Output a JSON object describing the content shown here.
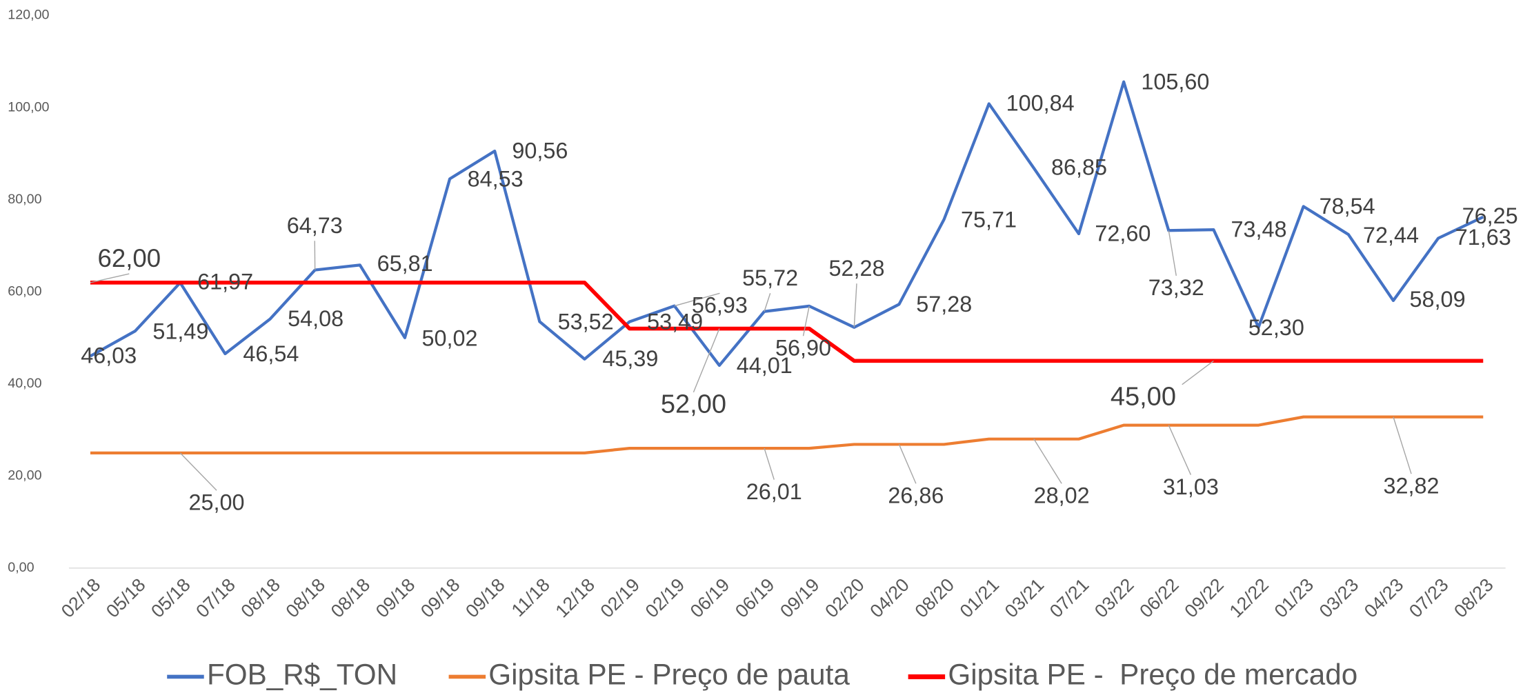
{
  "chart_data": {
    "type": "line",
    "categories": [
      "02/18",
      "05/18",
      "05/18",
      "07/18",
      "08/18",
      "08/18",
      "08/18",
      "09/18",
      "09/18",
      "09/18",
      "11/18",
      "12/18",
      "02/19",
      "02/19",
      "06/19",
      "06/19",
      "09/19",
      "02/20",
      "04/20",
      "08/20",
      "01/21",
      "03/21",
      "07/21",
      "03/22",
      "06/22",
      "09/22",
      "12/22",
      "01/23",
      "03/23",
      "04/23",
      "07/23",
      "08/23"
    ],
    "series": [
      {
        "name": "FOB_R$_TON",
        "color": "#4472c4",
        "values": [
          46.03,
          51.49,
          61.97,
          46.54,
          54.08,
          64.73,
          65.81,
          50.02,
          84.53,
          90.56,
          53.52,
          45.39,
          53.49,
          56.93,
          44.01,
          55.72,
          56.9,
          52.28,
          57.28,
          75.71,
          100.84,
          86.85,
          72.6,
          105.6,
          73.32,
          73.48,
          52.3,
          78.54,
          72.44,
          58.09,
          71.63,
          76.25
        ],
        "value_labels": [
          "46,03",
          "51,49",
          "61,97",
          "46,54",
          "54,08",
          "64,73",
          "65,81",
          "50,02",
          "84,53",
          "90,56",
          "53,52",
          "45,39",
          "53,49",
          "56,93",
          "44,01",
          "55,72",
          "56,90",
          "52,28",
          "57,28",
          "75,71",
          "100,84",
          "86,85",
          "72,60",
          "105,60",
          "73,32",
          "73,48",
          "52,30",
          "78,54",
          "72,44",
          "58,09",
          "71,63",
          "76,25"
        ]
      },
      {
        "name": "Gipsita PE - Preço de pauta",
        "color": "#ed7d31",
        "values": [
          25,
          25,
          25,
          25,
          25,
          25,
          25,
          25,
          25,
          25,
          25,
          25,
          26.01,
          26.01,
          26.01,
          26.01,
          26.01,
          26.86,
          26.86,
          26.86,
          28.02,
          28.02,
          28.02,
          31.03,
          31.03,
          31.03,
          31.03,
          32.82,
          32.82,
          32.82,
          32.82,
          32.82
        ],
        "value_labels": [
          null,
          null,
          "25,00",
          null,
          null,
          null,
          null,
          null,
          null,
          null,
          null,
          null,
          null,
          null,
          null,
          "26,01",
          null,
          null,
          "26,86",
          null,
          null,
          "28,02",
          null,
          null,
          "31,03",
          null,
          null,
          null,
          null,
          "32,82",
          null,
          null
        ]
      },
      {
        "name": "Gipsita PE -  Preço de mercado",
        "color": "#ff0000",
        "values": [
          62,
          62,
          62,
          62,
          62,
          62,
          62,
          62,
          62,
          62,
          62,
          62,
          52,
          52,
          52,
          52,
          52,
          45,
          45,
          45,
          45,
          45,
          45,
          45,
          45,
          45,
          45,
          45,
          45,
          45,
          45,
          45
        ],
        "value_labels": [
          "62,00",
          null,
          null,
          null,
          null,
          null,
          null,
          null,
          null,
          null,
          null,
          null,
          null,
          null,
          "52,00",
          null,
          null,
          null,
          null,
          null,
          null,
          null,
          null,
          null,
          null,
          "45,00",
          null,
          null,
          null,
          null,
          null,
          null
        ]
      }
    ],
    "ylim": [
      0,
      120
    ],
    "yticks": [
      {
        "value": 0,
        "label": "0,00"
      },
      {
        "value": 20,
        "label": "20,00"
      },
      {
        "value": 40,
        "label": "40,00"
      },
      {
        "value": 60,
        "label": "60,00"
      },
      {
        "value": 80,
        "label": "80,00"
      },
      {
        "value": 100,
        "label": "100,00"
      },
      {
        "value": 120,
        "label": "120,00"
      }
    ],
    "grid": false,
    "legend": "bottom"
  }
}
